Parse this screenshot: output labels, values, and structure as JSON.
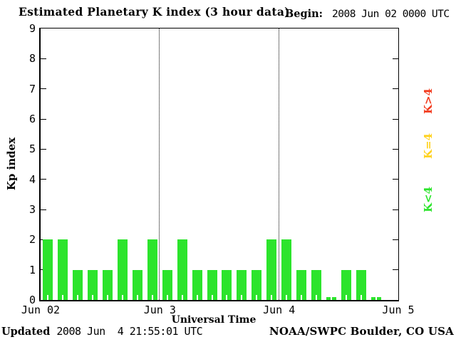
{
  "title": "Estimated Planetary K index (3 hour data)",
  "begin": {
    "label": "Begin:",
    "value": "2008 Jun 02 0000 UTC"
  },
  "footer": {
    "updated_label": "Updated",
    "updated_value": "2008 Jun  4 21:55:01 UTC",
    "credit": "NOAA/SWPC Boulder, CO USA"
  },
  "chart_data": {
    "type": "bar",
    "title": "Estimated Planetary K index (3 hour data)",
    "xlabel": "Universal Time",
    "ylabel": "Kp index",
    "begin_utc": "2008 Jun 02 0000 UTC",
    "interval_hours": 3,
    "x_range_hours": [
      0,
      72
    ],
    "ylim": [
      0,
      9
    ],
    "y_ticks": [
      0,
      1,
      2,
      3,
      4,
      5,
      6,
      7,
      8,
      9
    ],
    "x_ticks": [
      {
        "label": "Jun 02",
        "hour": 0
      },
      {
        "label": "Jun 3",
        "hour": 24
      },
      {
        "label": "Jun 4",
        "hour": 48
      },
      {
        "label": "Jun 5",
        "hour": 72
      }
    ],
    "day_separator_hours": [
      24,
      48
    ],
    "values": [
      2,
      2,
      1,
      1,
      1,
      2,
      1,
      2,
      1,
      2,
      1,
      1,
      1,
      1,
      1,
      2,
      2,
      1,
      1,
      0,
      1,
      1,
      0
    ],
    "bar_color": "#2CE42C",
    "background_color": "#ffffff",
    "grid": "vertical dotted day separators only",
    "legend_position": "right-outside-rotated",
    "legend": [
      {
        "label": "K>4",
        "color": "#F23B1E"
      },
      {
        "label": "K=4",
        "color": "#FFD21E"
      },
      {
        "label": "K<4",
        "color": "#2CE42C"
      }
    ]
  }
}
